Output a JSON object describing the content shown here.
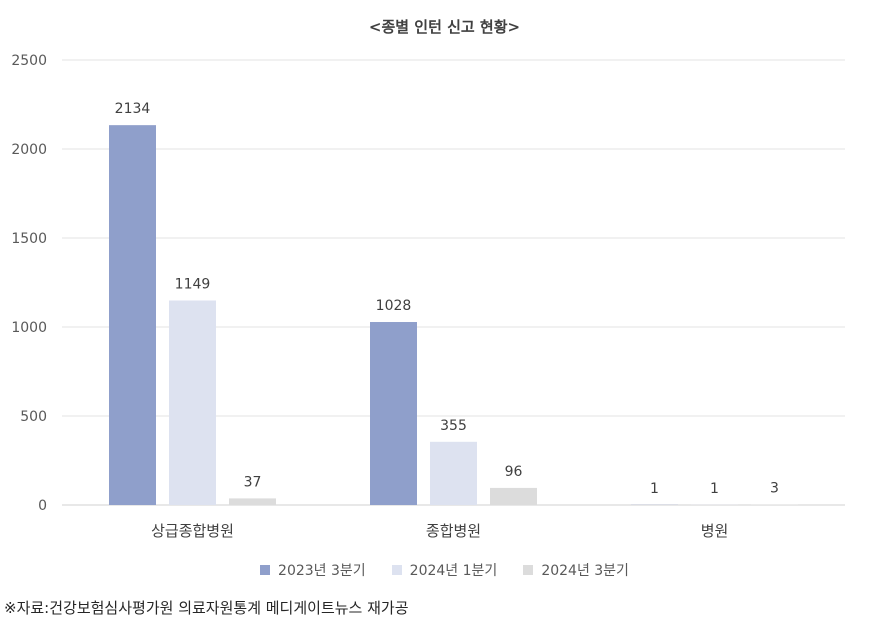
{
  "title": "<종별 인턴 신고 현황>",
  "source": "※자료:건강보험심사평가원 의료자원통계 메디게이트뉴스 재가공",
  "colors": [
    "#8f9fcb",
    "#dde2f0",
    "#dcdcdc"
  ],
  "chart_data": {
    "type": "bar",
    "title": "<종별 인턴 신고 현황>",
    "categories": [
      "상급종합병원",
      "종합병원",
      "병원"
    ],
    "series": [
      {
        "name": "2023년 3분기",
        "values": [
          2134,
          1028,
          1
        ]
      },
      {
        "name": "2024년 1분기",
        "values": [
          1149,
          355,
          1
        ]
      },
      {
        "name": "2024년 3분기",
        "values": [
          37,
          96,
          3
        ]
      }
    ],
    "yticks": [
      0,
      500,
      1000,
      1500,
      2000,
      2500
    ],
    "ylim": [
      0,
      2500
    ],
    "grid": true,
    "legend": "bottom"
  }
}
